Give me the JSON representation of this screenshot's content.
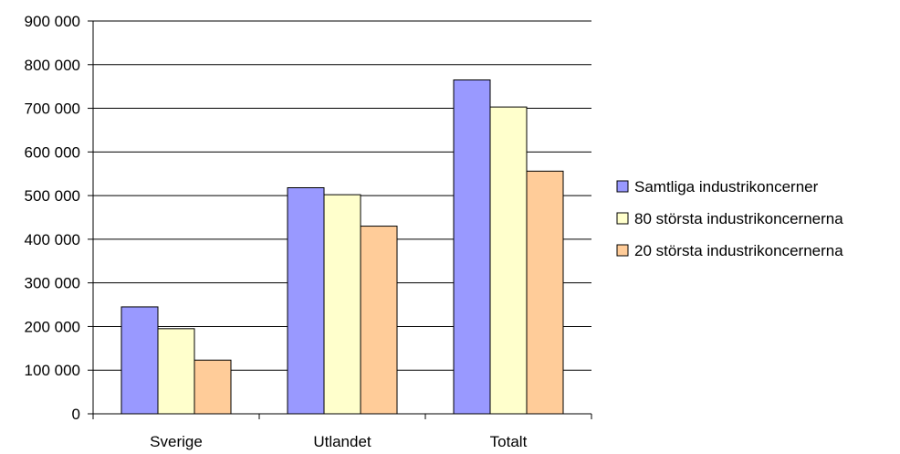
{
  "chart_data": {
    "type": "bar",
    "title": "",
    "xlabel": "",
    "ylabel": "",
    "categories": [
      "Sverige",
      "Utlandet",
      "Totalt"
    ],
    "series": [
      {
        "name": "Samtliga industrikoncerner",
        "color": "#9999ff",
        "values": [
          245000,
          518000,
          765000
        ]
      },
      {
        "name": "80 största industrikoncernerna",
        "color": "#ffffcc",
        "values": [
          195000,
          502000,
          703000
        ]
      },
      {
        "name": "20 största industrikoncernerna",
        "color": "#ffcc99",
        "values": [
          123000,
          430000,
          556000
        ]
      }
    ],
    "ylim": [
      0,
      900000
    ],
    "yticks": [
      {
        "value": 0,
        "label": "0"
      },
      {
        "value": 100000,
        "label": "100 000"
      },
      {
        "value": 200000,
        "label": "200 000"
      },
      {
        "value": 300000,
        "label": "300 000"
      },
      {
        "value": 400000,
        "label": "400 000"
      },
      {
        "value": 500000,
        "label": "500 000"
      },
      {
        "value": 600000,
        "label": "600 000"
      },
      {
        "value": 700000,
        "label": "700 000"
      },
      {
        "value": 800000,
        "label": "800 000"
      },
      {
        "value": 900000,
        "label": "900 000"
      }
    ],
    "grid": true,
    "legend_position": "right"
  }
}
